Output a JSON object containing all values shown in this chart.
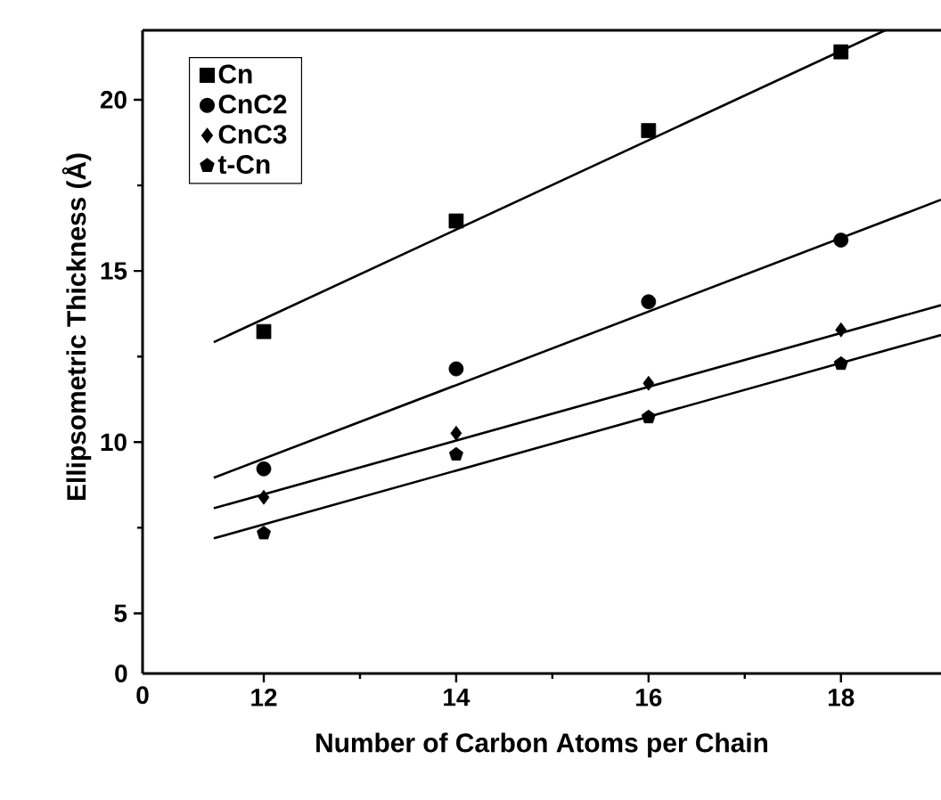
{
  "chart_data": [
    {
      "type": "scatter",
      "xlim": [
        10.74,
        19.04
      ],
      "ylim": [
        4.7,
        22.03
      ],
      "xticks": [
        12,
        14,
        16,
        18
      ],
      "yticks": [
        5,
        10,
        15,
        20
      ],
      "xlabel": "Number of Carbon Atoms per Chain",
      "ylabel": "Ellipsometric Thickness (Å)",
      "legend": "top left",
      "x": [
        12,
        14,
        16,
        18
      ],
      "series": [
        {
          "name": "Cn",
          "color": "#000000",
          "marker": "square",
          "values": [
            13.23,
            16.46,
            19.1,
            21.4
          ]
        },
        {
          "name": "CnC2",
          "color": "#000000",
          "marker": "circle",
          "values": [
            9.22,
            12.14,
            14.1,
            15.9
          ]
        },
        {
          "name": "CnC3",
          "color": "#000000",
          "marker": "diamond",
          "values": [
            8.39,
            10.26,
            11.72,
            13.28
          ]
        },
        {
          "name": "t-Cn",
          "color": "#000000",
          "values": [
            7.34,
            9.64,
            10.73,
            12.29
          ]
        },
        {
          "type": "line",
          "color": "#000000",
          "x": [
            11.48,
            18.46
          ],
          "values": [
            12.92,
            22.03
          ]
        },
        {
          "type": "line",
          "color": "#000000",
          "x": [
            11.48,
            19.04
          ],
          "values": [
            8.96,
            17.08
          ]
        },
        {
          "type": "line",
          "color": "#000000",
          "x": [
            11.48,
            19.04
          ],
          "values": [
            8.07,
            14.0
          ]
        },
        {
          "type": "line",
          "color": "#000000",
          "x": [
            11.48,
            19.04
          ],
          "values": [
            7.19,
            13.13
          ]
        }
      ]
    },
    {
      "type": "other",
      "annotations": [
        "0",
        "0"
      ]
    }
  ]
}
